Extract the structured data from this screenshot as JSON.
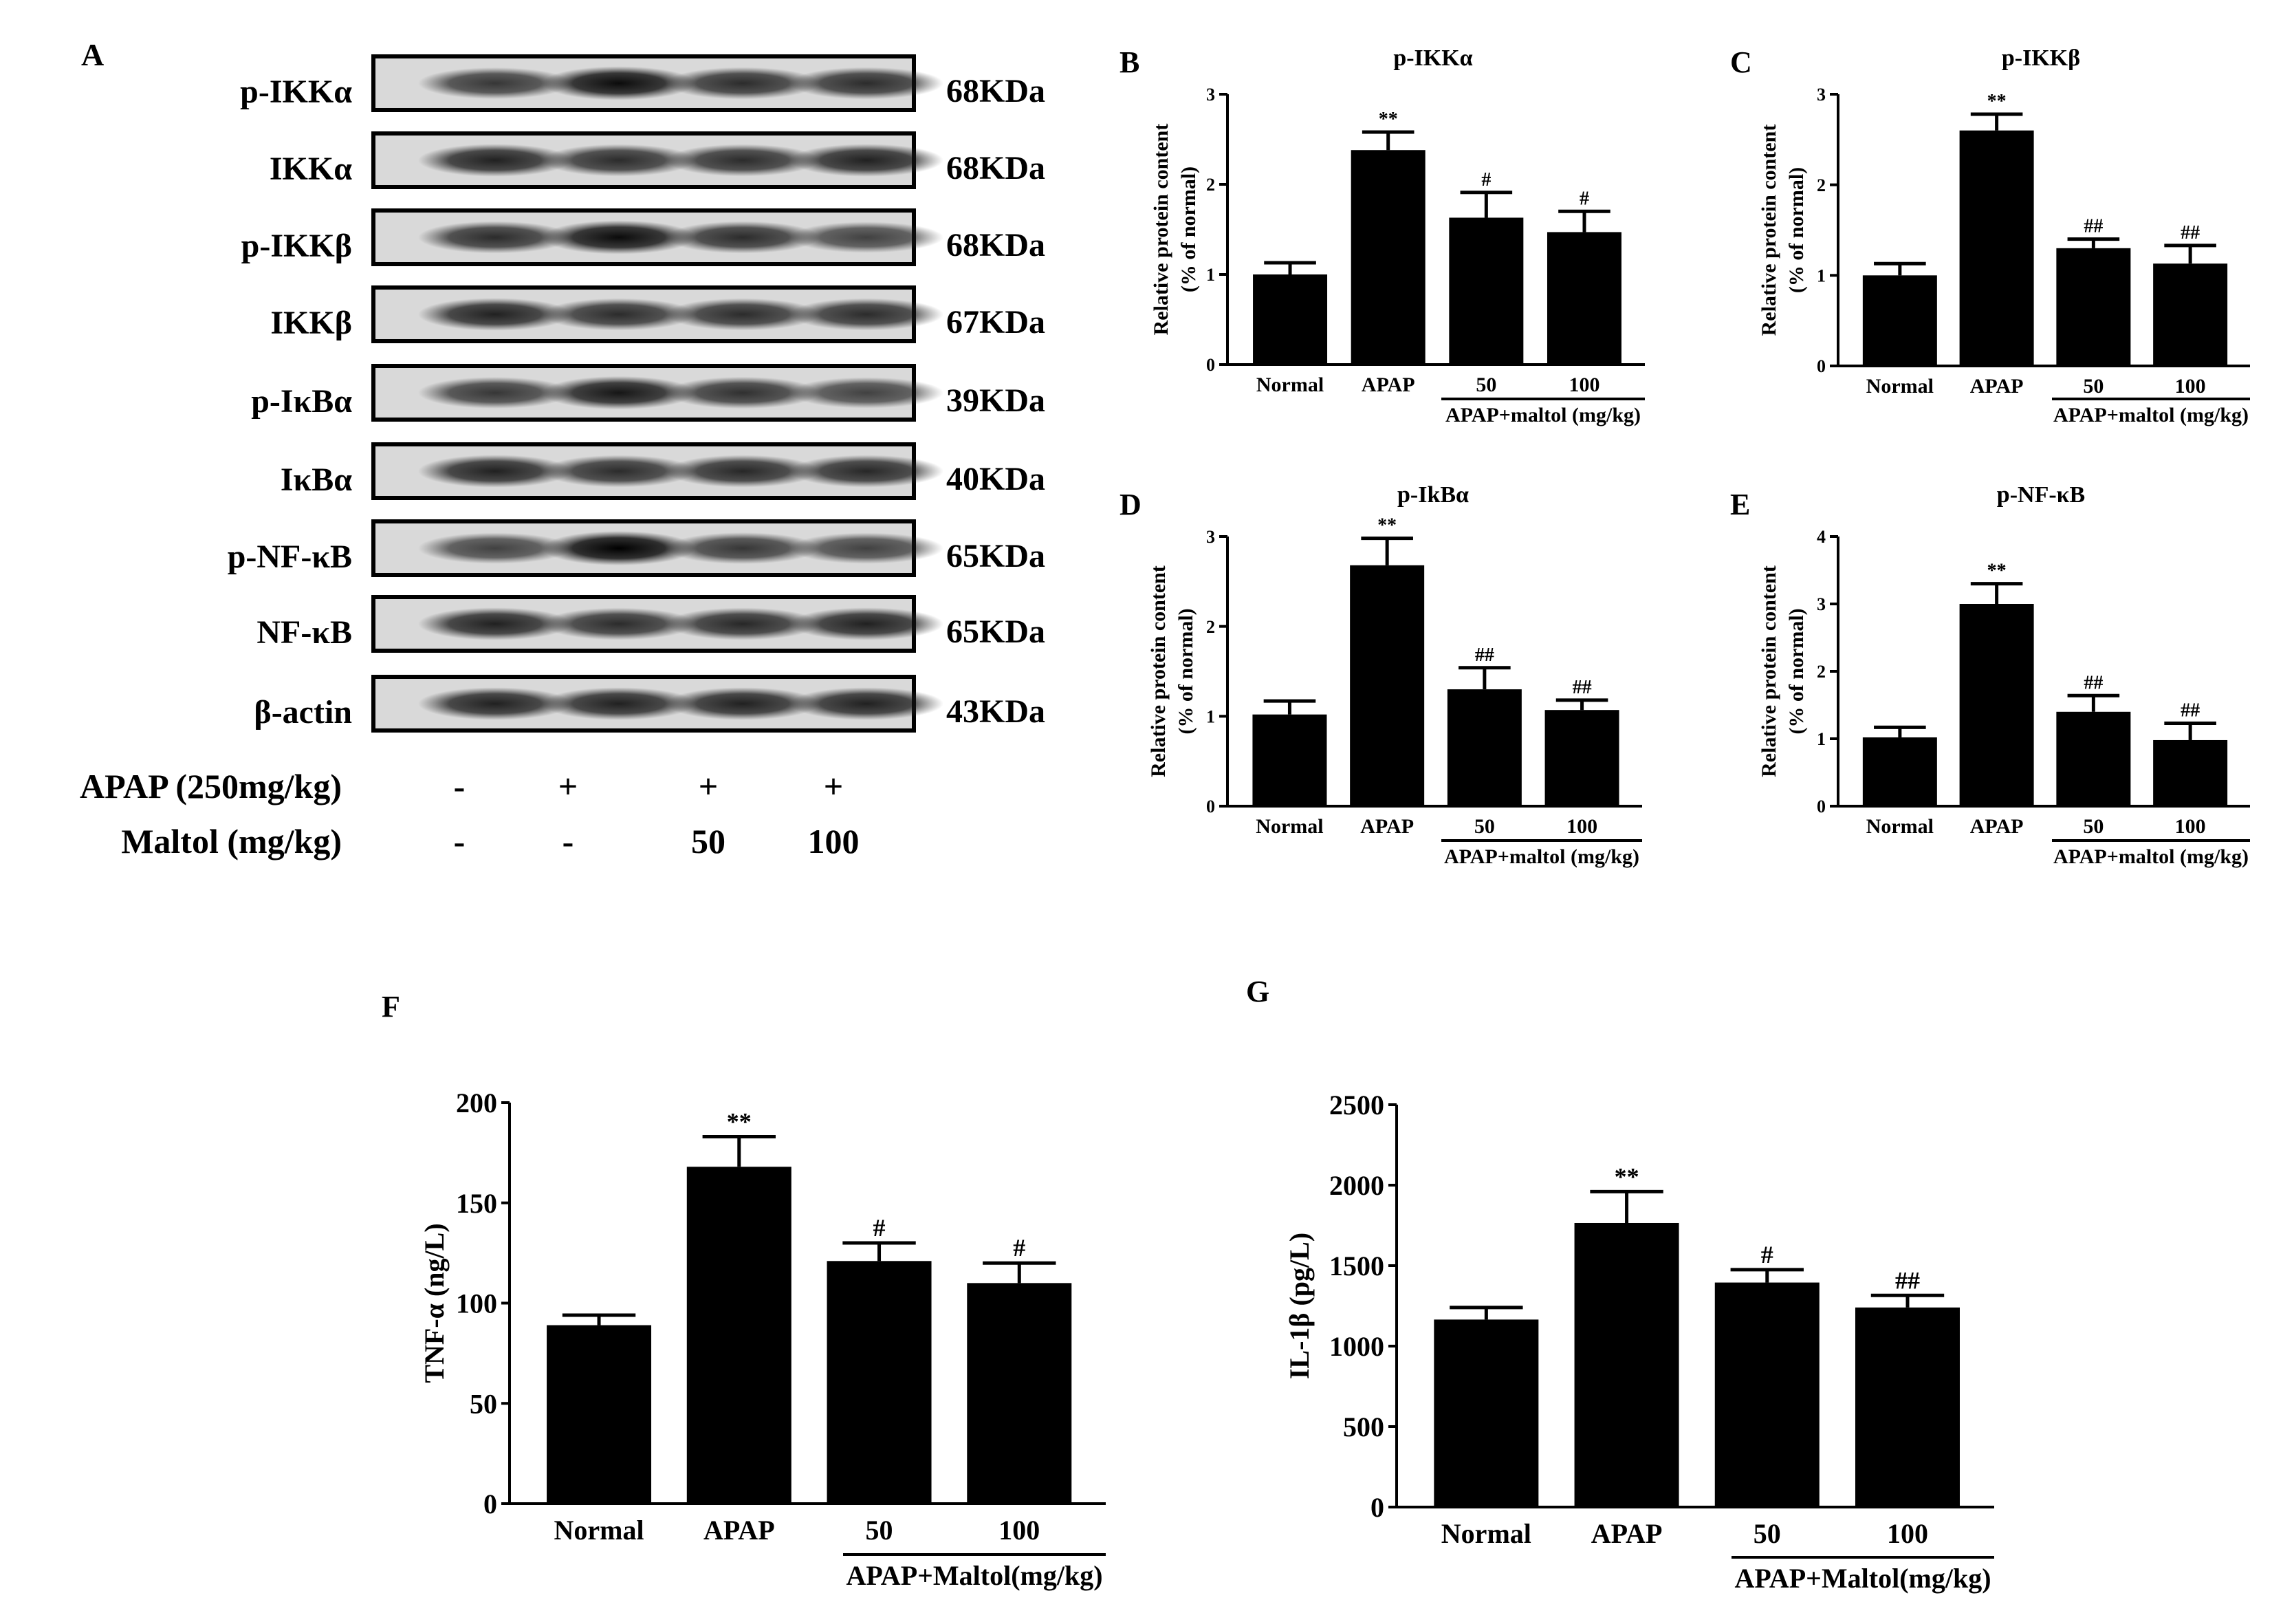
{
  "western_blot": {
    "panel_letter": "A",
    "rows": [
      {
        "protein": "p-IKKα",
        "size": "68KDa"
      },
      {
        "protein": "IKKα",
        "size": "68KDa"
      },
      {
        "protein": "p-IKKβ",
        "size": "68KDa"
      },
      {
        "protein": "IKKβ",
        "size": "67KDa"
      },
      {
        "protein": "p-IκBα",
        "size": "39KDa"
      },
      {
        "protein": "IκBα",
        "size": "40KDa"
      },
      {
        "protein": "p-NF-κB",
        "size": "65KDa"
      },
      {
        "protein": "NF-κB",
        "size": "65KDa"
      },
      {
        "protein": "β-actin",
        "size": "43KDa"
      }
    ],
    "treatment_rows": [
      {
        "label": "APAP (250mg/kg)",
        "values": [
          "-",
          "+",
          "+",
          "+"
        ]
      },
      {
        "label": "Maltol (mg/kg)",
        "values": [
          "-",
          "-",
          "50",
          "100"
        ]
      }
    ]
  },
  "chart_data": [
    {
      "panel": "B",
      "type": "bar",
      "title": "p-IKKα",
      "ylabel": [
        "Relative protein content",
        "(% of normal)"
      ],
      "ylim": [
        0,
        3
      ],
      "yticks": [
        0,
        1,
        2,
        3
      ],
      "categories": [
        "Normal",
        "APAP",
        "50",
        "100"
      ],
      "group_label": "APAP+maltol (mg/kg)",
      "values": [
        1.0,
        2.38,
        1.63,
        1.47
      ],
      "errors": [
        0.13,
        0.2,
        0.28,
        0.23
      ],
      "annotations": [
        "",
        "**",
        "#",
        "#"
      ]
    },
    {
      "panel": "C",
      "type": "bar",
      "title": "p-IKKβ",
      "ylabel": [
        "Relative protein content",
        "(% of normal)"
      ],
      "ylim": [
        0,
        3
      ],
      "yticks": [
        0,
        1,
        2,
        3
      ],
      "categories": [
        "Normal",
        "APAP",
        "50",
        "100"
      ],
      "group_label": "APAP+maltol (mg/kg)",
      "values": [
        1.0,
        2.6,
        1.3,
        1.13
      ],
      "errors": [
        0.13,
        0.18,
        0.1,
        0.2
      ],
      "annotations": [
        "",
        "**",
        "##",
        "##"
      ]
    },
    {
      "panel": "D",
      "type": "bar",
      "title": "p-IkBα",
      "ylabel": [
        "Relative protein content",
        "(% of normal)"
      ],
      "ylim": [
        0,
        3
      ],
      "yticks": [
        0,
        1,
        2,
        3
      ],
      "categories": [
        "Normal",
        "APAP",
        "50",
        "100"
      ],
      "group_label": "APAP+maltol (mg/kg)",
      "values": [
        1.02,
        2.68,
        1.3,
        1.07
      ],
      "errors": [
        0.15,
        0.3,
        0.24,
        0.11
      ],
      "annotations": [
        "",
        "**",
        "##",
        "##"
      ]
    },
    {
      "panel": "E",
      "type": "bar",
      "title": "p-NF-κB",
      "ylabel": [
        "Relative protein content",
        "(% of normal)"
      ],
      "ylim": [
        0,
        4
      ],
      "yticks": [
        0,
        1,
        2,
        3,
        4
      ],
      "categories": [
        "Normal",
        "APAP",
        "50",
        "100"
      ],
      "group_label": "APAP+maltol (mg/kg)",
      "values": [
        1.02,
        3.0,
        1.4,
        0.98
      ],
      "errors": [
        0.15,
        0.3,
        0.24,
        0.25
      ],
      "annotations": [
        "",
        "**",
        "##",
        "##"
      ]
    },
    {
      "panel": "F",
      "type": "bar",
      "title": "",
      "ylabel": [
        "TNF-α (ng/L)"
      ],
      "ylim": [
        0,
        200
      ],
      "yticks": [
        0,
        50,
        100,
        150,
        200
      ],
      "categories": [
        "Normal",
        "APAP",
        "50",
        "100"
      ],
      "group_label": "APAP+Maltol(mg/kg)",
      "values": [
        89,
        168,
        121,
        110
      ],
      "errors": [
        5,
        15,
        9,
        10
      ],
      "annotations": [
        "",
        "**",
        "#",
        "#"
      ]
    },
    {
      "panel": "G",
      "type": "bar",
      "title": "",
      "ylabel": [
        "IL-1β (pg/L)"
      ],
      "ylim": [
        0,
        2500
      ],
      "yticks": [
        0,
        500,
        1000,
        1500,
        2000,
        2500
      ],
      "categories": [
        "Normal",
        "APAP",
        "50",
        "100"
      ],
      "group_label": "APAP+Maltol(mg/kg)",
      "values": [
        1165,
        1765,
        1395,
        1240
      ],
      "errors": [
        75,
        195,
        80,
        75
      ],
      "annotations": [
        "",
        "**",
        "#",
        "##"
      ]
    }
  ]
}
